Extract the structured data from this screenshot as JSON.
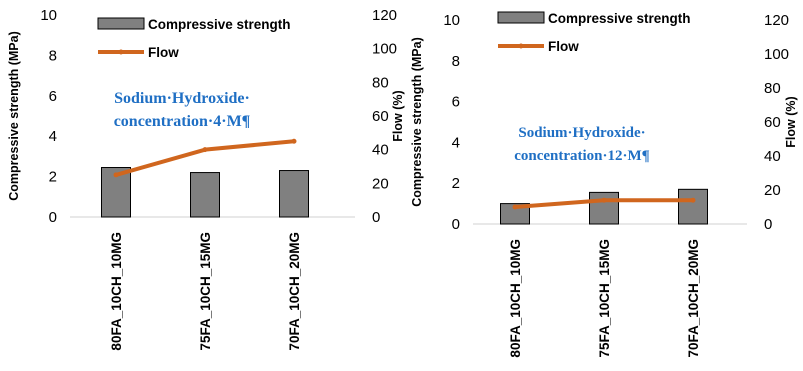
{
  "chart_data": [
    {
      "type": "bar",
      "categories": [
        "80FA_10CH_10MG",
        "75FA_10CH_15MG",
        "70FA_10CH_20MG"
      ],
      "series": [
        {
          "name": "Compressive strength",
          "kind": "bar",
          "axis": "left",
          "values": [
            2.45,
            2.2,
            2.3
          ]
        },
        {
          "name": "Flow",
          "kind": "line",
          "axis": "right",
          "values": [
            25,
            40,
            45
          ]
        }
      ],
      "ylabel": "Compressive strength (MPa)",
      "y2label": "Flow (%)",
      "ylim": [
        0,
        10
      ],
      "y2lim": [
        0,
        120
      ],
      "yticks": [
        "0",
        "2",
        "4",
        "6",
        "8",
        "10"
      ],
      "y2ticks": [
        "0",
        "20",
        "40",
        "60",
        "80",
        "100",
        "120"
      ],
      "annotation": [
        "Sodium·Hydroxide·",
        "concentration·4·M¶"
      ],
      "grid": false,
      "legend": "top"
    },
    {
      "type": "bar",
      "categories": [
        "80FA_10CH_10MG",
        "75FA_10CH_15MG",
        "70FA_10CH_20MG"
      ],
      "series": [
        {
          "name": "Compressive strength",
          "kind": "bar",
          "axis": "left",
          "values": [
            1.0,
            1.55,
            1.7
          ]
        },
        {
          "name": "Flow",
          "kind": "line",
          "axis": "right",
          "values": [
            10,
            14,
            14
          ]
        }
      ],
      "ylabel": "Compressive strength (MPa)",
      "y2label": "Flow (%)",
      "ylim": [
        0,
        10
      ],
      "y2lim": [
        0,
        120
      ],
      "yticks": [
        "0",
        "2",
        "4",
        "6",
        "8",
        "10"
      ],
      "y2ticks": [
        "0",
        "20",
        "40",
        "60",
        "80",
        "100",
        "120"
      ],
      "annotation": [
        "Sodium·Hydroxide·",
        "concentration·12·M¶"
      ],
      "grid": false,
      "legend": "top"
    }
  ],
  "colors": {
    "bar_fill": "#808080",
    "bar_stroke": "#000000",
    "line": "#d0661e",
    "annotation": "#1f6fc4"
  }
}
